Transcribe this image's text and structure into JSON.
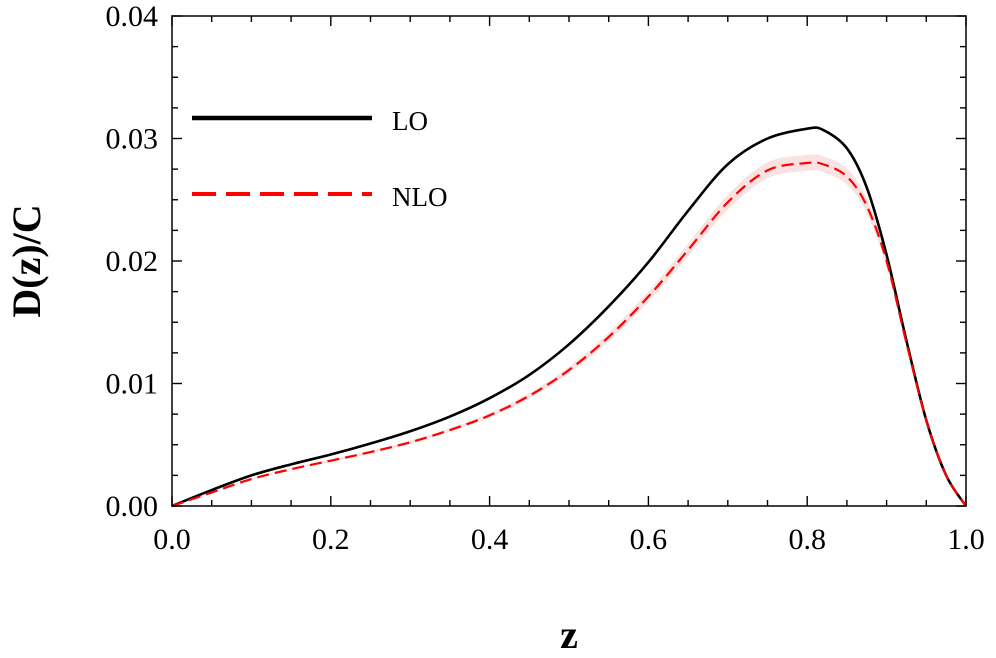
{
  "chart_data": {
    "type": "line",
    "xlabel": "z",
    "ylabel": "D(z)/C",
    "xlim": [
      0.0,
      1.0
    ],
    "ylim": [
      0.0,
      0.04
    ],
    "x_ticks": [
      "0.0",
      "0.2",
      "0.4",
      "0.6",
      "0.8",
      "1.0"
    ],
    "y_ticks": [
      "0.00",
      "0.01",
      "0.02",
      "0.03",
      "0.04"
    ],
    "grid": false,
    "legend_position": "top-left",
    "x": [
      0,
      0.05,
      0.1,
      0.15,
      0.2,
      0.25,
      0.3,
      0.35,
      0.4,
      0.45,
      0.5,
      0.55,
      0.6,
      0.65,
      0.7,
      0.75,
      0.8,
      0.82,
      0.85,
      0.875,
      0.9,
      0.925,
      0.95,
      0.975,
      1.0
    ],
    "series": [
      {
        "name": "LO",
        "color": "#000000",
        "style": "solid",
        "values": [
          0,
          0.0013,
          0.0025,
          0.0034,
          0.0042,
          0.0051,
          0.0061,
          0.0073,
          0.0088,
          0.0107,
          0.0132,
          0.0163,
          0.0199,
          0.0241,
          0.0279,
          0.03,
          0.0308,
          0.0307,
          0.0292,
          0.026,
          0.0205,
          0.0135,
          0.007,
          0.0025,
          0.0
        ]
      },
      {
        "name": "NLO",
        "color": "#ff0000",
        "style": "dashed",
        "band": true,
        "values": [
          0,
          0.0011,
          0.0022,
          0.003,
          0.0037,
          0.0044,
          0.0052,
          0.0062,
          0.0074,
          0.009,
          0.0111,
          0.0138,
          0.0171,
          0.0209,
          0.0248,
          0.0274,
          0.028,
          0.0279,
          0.0269,
          0.0245,
          0.02,
          0.0133,
          0.007,
          0.0025,
          0.0
        ]
      }
    ]
  }
}
